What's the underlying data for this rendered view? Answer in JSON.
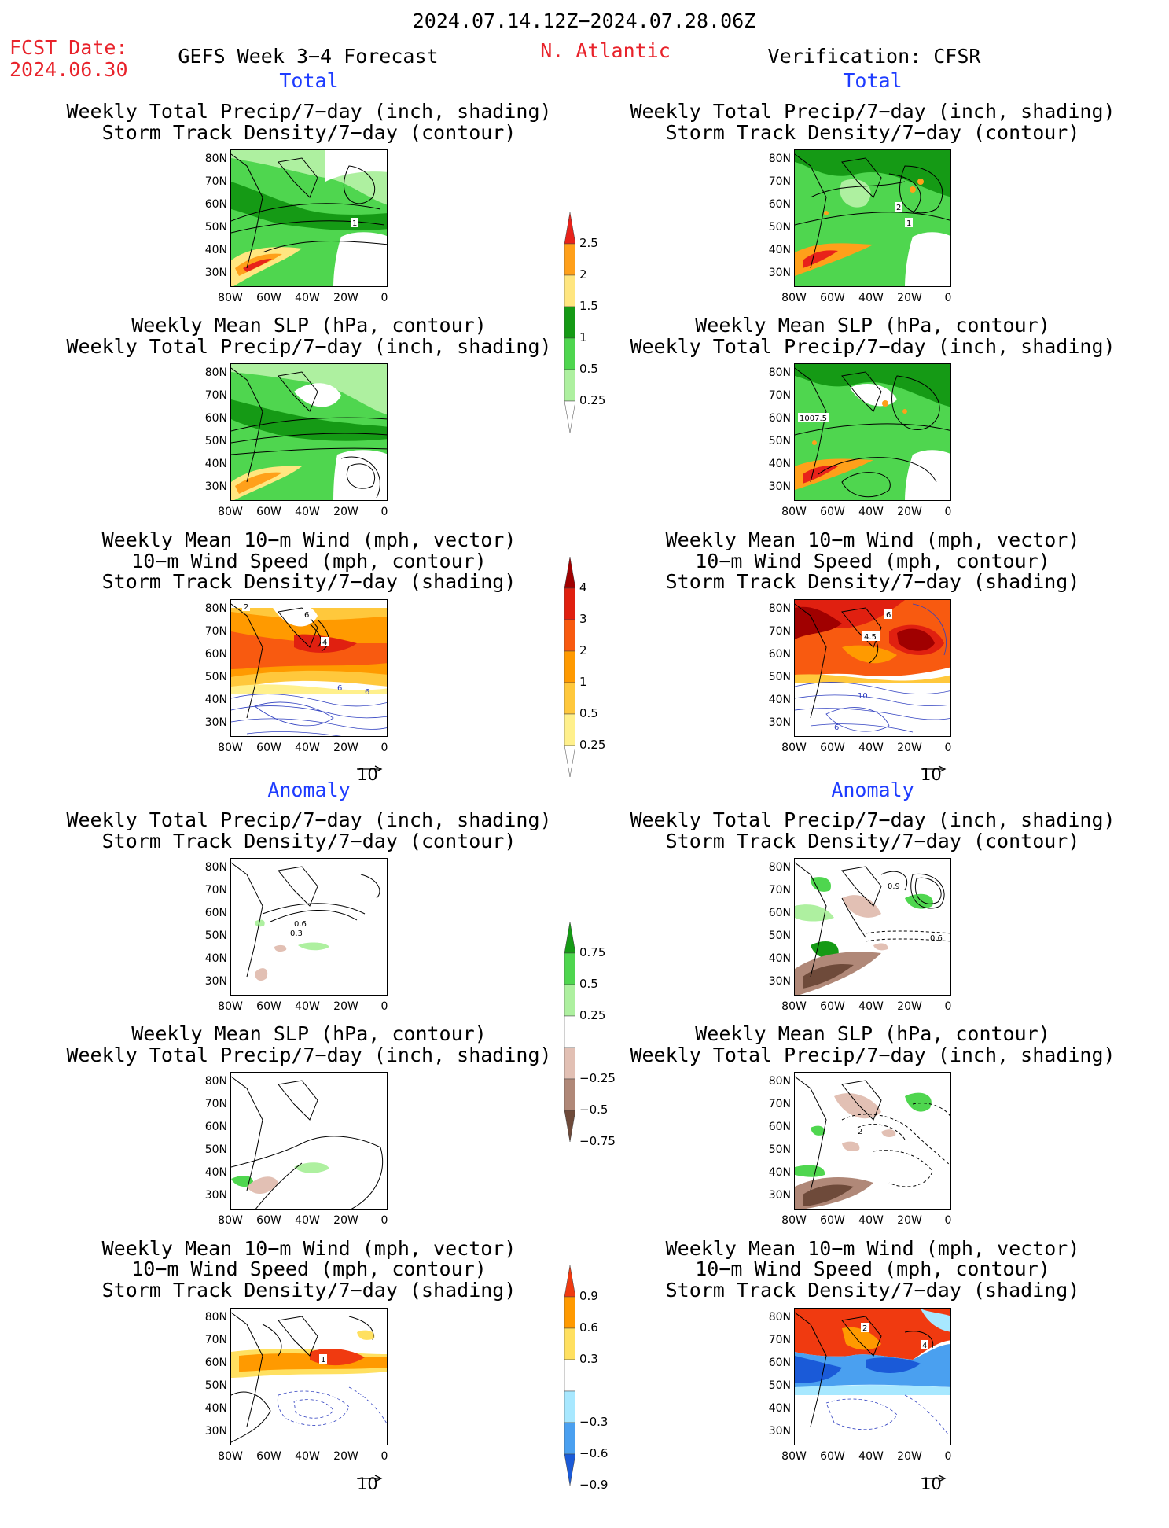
{
  "header": {
    "period": "2024.07.14.12Z−2024.07.28.06Z",
    "fcst_label": "FCST Date:",
    "fcst_date": "2024.06.30",
    "model": "GEFS Week 3−4 Forecast",
    "region": "N. Atlantic",
    "verification": "Verification: CFSR"
  },
  "sections": {
    "total": "Total",
    "anomaly": "Anomaly"
  },
  "titles": {
    "precip_track_1": "Weekly Total Precip/7−day (inch, shading)",
    "precip_track_2": "Storm Track Density/7−day (contour)",
    "slp_precip_1": "Weekly Mean SLP (hPa, contour)",
    "slp_precip_2": "Weekly Total Precip/7−day (inch, shading)",
    "wind_1": "Weekly Mean 10−m Wind (mph, vector)",
    "wind_2": "10−m Wind Speed (mph, contour)",
    "wind_3": "Storm Track Density/7−day (shading)"
  },
  "axes": {
    "lat": [
      "80N",
      "70N",
      "60N",
      "50N",
      "40N",
      "30N"
    ],
    "lon": [
      "80W",
      "60W",
      "40W",
      "20W",
      "0"
    ]
  },
  "vector_ref": "10",
  "contour_labels": {
    "p_left": "1",
    "p_right_a": "2",
    "p_right_b": "1",
    "slp_right": "1007.5",
    "w_left_a": "2",
    "w_left_b": "6",
    "w_left_c": "4",
    "w_left_d": "6",
    "w_left_e": "6",
    "w_right_a": "6",
    "w_right_b": "4.5",
    "w_right_c": "10",
    "w_right_d": "6",
    "a_left_a": "0.6",
    "a_left_b": "0.3",
    "a_right_a": "0.9",
    "a_right_b": "0.6",
    "as_right": "2",
    "aw_left": "1",
    "aw_right_a": "2",
    "aw_right_b": "4"
  },
  "colorbars": {
    "precip": {
      "labels": [
        "2.5",
        "2",
        "1.5",
        "1",
        "0.5",
        "0.25"
      ],
      "colors": [
        "#e8221a",
        "#ffa01a",
        "#ffe680",
        "#159a15",
        "#4fd64f",
        "#aef0a0"
      ]
    },
    "track": {
      "labels": [
        "4",
        "3",
        "2",
        "1",
        "0.5",
        "0.25"
      ],
      "colors": [
        "#a00000",
        "#e02010",
        "#f85a10",
        "#ff9a00",
        "#ffc83c",
        "#fff08c"
      ]
    },
    "precip_anom": {
      "labels": [
        "0.75",
        "0.5",
        "0.25",
        "−0.25",
        "−0.5",
        "−0.75"
      ],
      "colors": [
        "#159a15",
        "#4fd64f",
        "#aef0a0",
        "#ffffff",
        "#e2c0b4",
        "#b08878",
        "#6e4a3a"
      ]
    },
    "track_anom": {
      "labels": [
        "0.9",
        "0.6",
        "0.3",
        "−0.3",
        "−0.6",
        "−0.9"
      ],
      "colors": [
        "#f03a10",
        "#ff9a00",
        "#ffe060",
        "#ffffff",
        "#a8e8ff",
        "#4aa0f0",
        "#1a5ad8"
      ]
    }
  }
}
